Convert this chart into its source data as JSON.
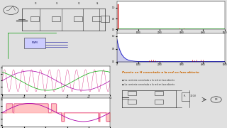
{
  "bg_color": "#e0e0e0",
  "panel_bg": "#ffffff",
  "top_left_bg": "#d8d8d8",
  "top_right_bg": "#ffffff",
  "bot_left_bg": "#ffffff",
  "bot_right_bg": "#f0f0f0",
  "bot_right_text": "Puente en H conectado a la red en lazo abierto",
  "bot_right_text_color": "#cc6600",
  "spectrum1_green": "#00bb00",
  "spectrum1_red": "#cc0000",
  "spectrum2_blue": "#0000cc",
  "spectrum2_red": "#cc0000",
  "wave_colors": [
    "#cc0066",
    "#aa00aa",
    "#00aa00"
  ],
  "wave2_colors": [
    "#cc0066",
    "#aa00aa"
  ],
  "wave_fill": "#ffaaaa"
}
